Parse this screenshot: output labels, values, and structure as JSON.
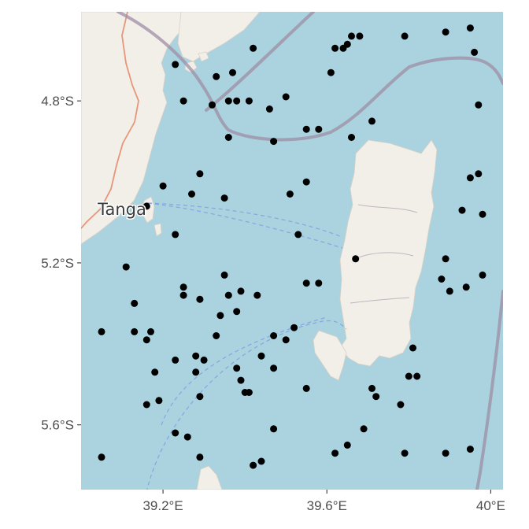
{
  "map": {
    "place_labels": [
      {
        "name": "Tanga",
        "lon": 39.1,
        "lat": -5.07
      }
    ],
    "x_ticks": [
      {
        "value": 39.2,
        "label": "39.2°E"
      },
      {
        "value": 39.6,
        "label": "39.6°E"
      },
      {
        "value": 40.0,
        "label": "40°E"
      }
    ],
    "y_ticks": [
      {
        "value": -4.8,
        "label": "4.8°S"
      },
      {
        "value": -5.2,
        "label": "5.2°S"
      },
      {
        "value": -5.6,
        "label": "5.6°S"
      }
    ],
    "colors": {
      "sea": "#aad3df",
      "land": "#f2efe9",
      "border": "#9e8ea4",
      "points": "#000000",
      "road": "#e8967a",
      "shipping_route": "#6b8fe0"
    }
  },
  "chart_data": {
    "type": "scatter",
    "title": "",
    "xlabel": "",
    "ylabel": "",
    "xlim": [
      39.0,
      40.03
    ],
    "ylim": [
      -5.76,
      -4.58
    ],
    "points": [
      [
        39.23,
        -4.71
      ],
      [
        39.33,
        -4.74
      ],
      [
        39.37,
        -4.73
      ],
      [
        39.42,
        -4.67
      ],
      [
        39.62,
        -4.67
      ],
      [
        39.64,
        -4.67
      ],
      [
        39.65,
        -4.66
      ],
      [
        39.66,
        -4.64
      ],
      [
        39.68,
        -4.64
      ],
      [
        39.79,
        -4.64
      ],
      [
        39.89,
        -4.63
      ],
      [
        39.95,
        -4.62
      ],
      [
        39.96,
        -4.68
      ],
      [
        39.61,
        -4.73
      ],
      [
        39.25,
        -4.8
      ],
      [
        39.32,
        -4.81
      ],
      [
        39.36,
        -4.8
      ],
      [
        39.38,
        -4.8
      ],
      [
        39.41,
        -4.8
      ],
      [
        39.46,
        -4.82
      ],
      [
        39.5,
        -4.79
      ],
      [
        39.71,
        -4.85
      ],
      [
        39.97,
        -4.81
      ],
      [
        39.36,
        -4.89
      ],
      [
        39.47,
        -4.9
      ],
      [
        39.55,
        -4.87
      ],
      [
        39.58,
        -4.87
      ],
      [
        39.66,
        -4.89
      ],
      [
        39.29,
        -4.98
      ],
      [
        39.2,
        -5.01
      ],
      [
        39.27,
        -5.03
      ],
      [
        39.35,
        -5.04
      ],
      [
        39.51,
        -5.03
      ],
      [
        39.55,
        -5.0
      ],
      [
        39.95,
        -4.99
      ],
      [
        39.97,
        -4.98
      ],
      [
        39.16,
        -5.06
      ],
      [
        39.93,
        -5.07
      ],
      [
        39.98,
        -5.08
      ],
      [
        39.23,
        -5.13
      ],
      [
        39.53,
        -5.13
      ],
      [
        39.67,
        -5.19
      ],
      [
        39.11,
        -5.21
      ],
      [
        39.89,
        -5.19
      ],
      [
        39.35,
        -5.23
      ],
      [
        39.55,
        -5.25
      ],
      [
        39.58,
        -5.25
      ],
      [
        39.88,
        -5.24
      ],
      [
        39.98,
        -5.23
      ],
      [
        39.94,
        -5.26
      ],
      [
        39.25,
        -5.26
      ],
      [
        39.25,
        -5.28
      ],
      [
        39.29,
        -5.29
      ],
      [
        39.36,
        -5.28
      ],
      [
        39.39,
        -5.27
      ],
      [
        39.43,
        -5.28
      ],
      [
        39.13,
        -5.3
      ],
      [
        39.9,
        -5.27
      ],
      [
        39.38,
        -5.32
      ],
      [
        39.34,
        -5.33
      ],
      [
        39.05,
        -5.37
      ],
      [
        39.13,
        -5.37
      ],
      [
        39.17,
        -5.37
      ],
      [
        39.16,
        -5.39
      ],
      [
        39.33,
        -5.38
      ],
      [
        39.47,
        -5.38
      ],
      [
        39.52,
        -5.36
      ],
      [
        39.5,
        -5.39
      ],
      [
        39.81,
        -5.41
      ],
      [
        39.28,
        -5.43
      ],
      [
        39.23,
        -5.44
      ],
      [
        39.3,
        -5.44
      ],
      [
        39.44,
        -5.43
      ],
      [
        39.18,
        -5.47
      ],
      [
        39.28,
        -5.47
      ],
      [
        39.38,
        -5.46
      ],
      [
        39.47,
        -5.46
      ],
      [
        39.39,
        -5.49
      ],
      [
        39.8,
        -5.48
      ],
      [
        39.82,
        -5.48
      ],
      [
        39.55,
        -5.51
      ],
      [
        39.71,
        -5.51
      ],
      [
        39.4,
        -5.52
      ],
      [
        39.41,
        -5.52
      ],
      [
        39.29,
        -5.53
      ],
      [
        39.72,
        -5.53
      ],
      [
        39.19,
        -5.54
      ],
      [
        39.16,
        -5.55
      ],
      [
        39.78,
        -5.55
      ],
      [
        39.47,
        -5.61
      ],
      [
        39.69,
        -5.61
      ],
      [
        39.23,
        -5.62
      ],
      [
        39.26,
        -5.63
      ],
      [
        39.65,
        -5.65
      ],
      [
        39.62,
        -5.67
      ],
      [
        39.79,
        -5.67
      ],
      [
        39.89,
        -5.67
      ],
      [
        39.95,
        -5.66
      ],
      [
        39.05,
        -5.68
      ],
      [
        39.29,
        -5.68
      ],
      [
        39.44,
        -5.69
      ],
      [
        39.42,
        -5.7
      ]
    ]
  }
}
